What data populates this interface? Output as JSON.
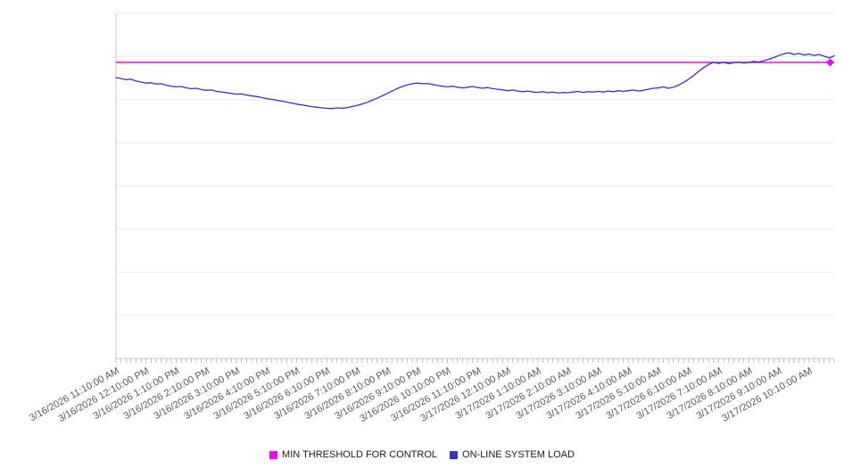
{
  "legend": {
    "items": [
      {
        "label": "MIN THRESHOLD FOR CONTROL",
        "color": "#f503f5"
      },
      {
        "label": "ON-LINE SYSTEM LOAD",
        "color": "#3333cc"
      }
    ]
  },
  "chart_data": {
    "type": "line",
    "title": "",
    "xlabel": "",
    "ylabel": "",
    "ylim": [
      0,
      100
    ],
    "grid_divisions": 8,
    "y_axis_labels_visible": false,
    "legend_position": "bottom-center",
    "tick_interval_minutes": 10,
    "label_interval_minutes": 60,
    "points_per_label": 6,
    "colors": {
      "grid": "#e8e8e8",
      "axis": "#c8c8c8",
      "tick": "#9a9a9a",
      "label_text": "#595959"
    },
    "x_tick_labels": [
      "3/16/2026 11:10:00 AM",
      "3/16/2026 12:10:00 PM",
      "3/16/2026 1:10:00 PM",
      "3/16/2026 2:10:00 PM",
      "3/16/2026 3:10:00 PM",
      "3/16/2026 4:10:00 PM",
      "3/16/2026 5:10:00 PM",
      "3/16/2026 6:10:00 PM",
      "3/16/2026 7:10:00 PM",
      "3/16/2026 8:10:00 PM",
      "3/16/2026 9:10:00 PM",
      "3/16/2026 10:10:00 PM",
      "3/16/2026 11:10:00 PM",
      "3/17/2026 12:10:00 AM",
      "3/17/2026 1:10:00 AM",
      "3/17/2026 2:10:00 AM",
      "3/17/2026 3:10:00 AM",
      "3/17/2026 4:10:00 AM",
      "3/17/2026 5:10:00 AM",
      "3/17/2026 6:10:00 AM",
      "3/17/2026 7:10:00 AM",
      "3/17/2026 8:10:00 AM",
      "3/17/2026 9:10:00 AM",
      "3/17/2026 10:10:00 AM"
    ],
    "series": [
      {
        "name": "MIN THRESHOLD FOR CONTROL",
        "type": "threshold-line",
        "color": "#f503f5",
        "value": 85.8
      },
      {
        "name": "ON-LINE SYSTEM LOAD",
        "type": "line",
        "color": "#3333cc",
        "values": [
          81.4,
          81.1,
          80.8,
          80.9,
          80.4,
          80.1,
          79.8,
          79.9,
          79.5,
          79.6,
          79.2,
          78.9,
          78.7,
          78.8,
          78.4,
          78.2,
          78.3,
          77.9,
          77.7,
          77.8,
          77.4,
          77.2,
          77.0,
          76.8,
          76.6,
          76.7,
          76.3,
          76.1,
          75.9,
          75.6,
          75.3,
          75.1,
          74.8,
          74.6,
          74.3,
          74.0,
          73.7,
          73.5,
          73.2,
          73.0,
          72.8,
          72.6,
          72.5,
          72.4,
          72.6,
          72.5,
          72.7,
          73.0,
          73.3,
          73.7,
          74.2,
          74.8,
          75.4,
          76.1,
          76.8,
          77.5,
          78.2,
          78.8,
          79.3,
          79.6,
          79.8,
          79.6,
          79.7,
          79.4,
          79.1,
          78.9,
          78.7,
          78.9,
          78.6,
          78.4,
          78.6,
          78.8,
          78.5,
          78.3,
          78.5,
          78.2,
          78.0,
          77.8,
          77.6,
          77.8,
          77.5,
          77.3,
          77.5,
          77.2,
          77.1,
          77.3,
          77.0,
          77.2,
          76.9,
          77.1,
          77.0,
          77.2,
          77.4,
          77.1,
          77.3,
          77.2,
          77.4,
          77.2,
          77.5,
          77.3,
          77.6,
          77.4,
          77.6,
          77.8,
          77.5,
          77.7,
          78.0,
          78.3,
          78.4,
          78.7,
          78.3,
          78.6,
          79.2,
          80.0,
          80.9,
          82.0,
          83.2,
          84.3,
          85.2,
          85.8,
          85.5,
          85.8,
          85.4,
          85.7,
          85.9,
          85.6,
          85.8,
          86.1,
          85.9,
          86.3,
          86.7,
          87.2,
          87.8,
          88.3,
          88.6,
          88.1,
          88.4,
          87.9,
          88.2,
          87.8,
          88.1,
          87.6,
          87.1,
          87.7
        ]
      }
    ]
  }
}
